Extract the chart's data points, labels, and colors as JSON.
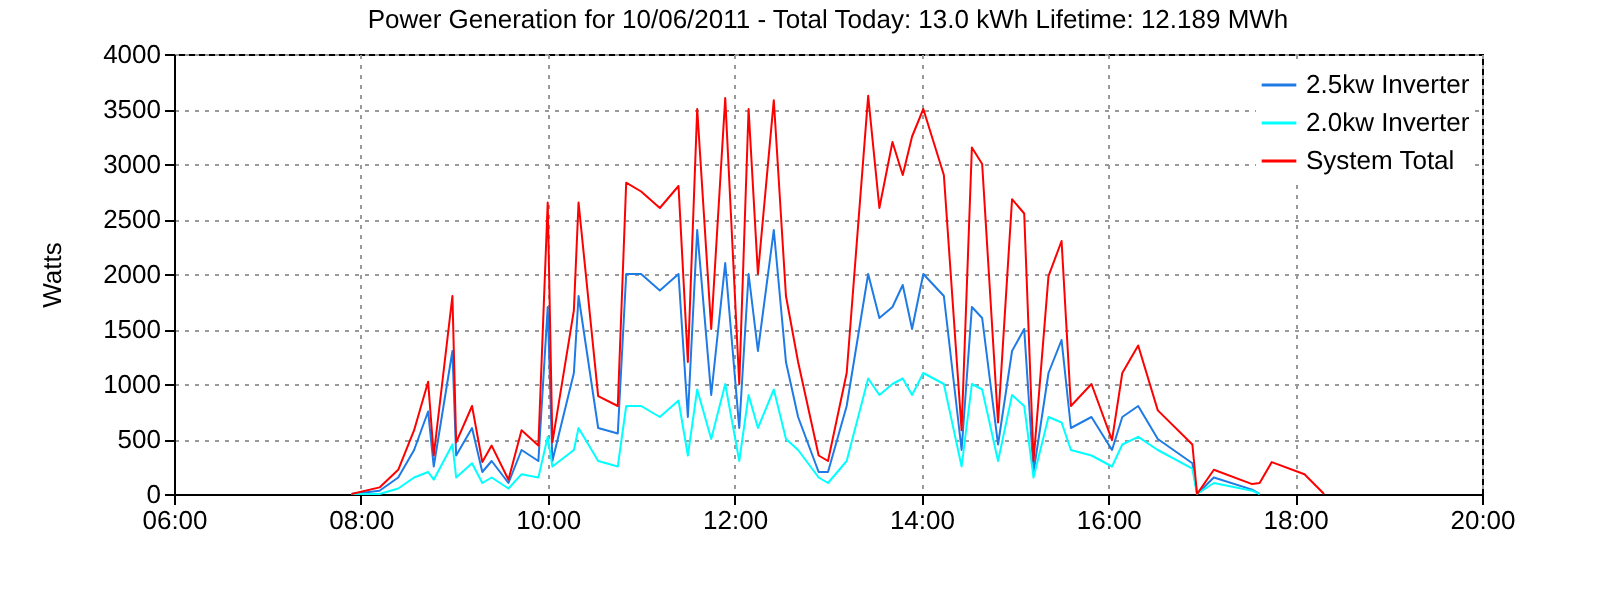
{
  "chart_data": {
    "type": "line",
    "title": "Power Generation for 10/06/2011 - Total Today: 13.0 kWh   Lifetime: 12.189 MWh",
    "ylabel": "Watts",
    "x": [
      7.9,
      8.2,
      8.4,
      8.57,
      8.72,
      8.78,
      8.98,
      9.02,
      9.19,
      9.3,
      9.4,
      9.58,
      9.72,
      9.9,
      10.0,
      10.05,
      10.28,
      10.33,
      10.54,
      10.75,
      10.84,
      11.0,
      11.2,
      11.4,
      11.5,
      11.6,
      11.75,
      11.9,
      12.05,
      12.15,
      12.25,
      12.42,
      12.55,
      12.68,
      12.9,
      13.0,
      13.2,
      13.43,
      13.55,
      13.69,
      13.8,
      13.9,
      14.02,
      14.24,
      14.43,
      14.54,
      14.65,
      14.82,
      14.97,
      15.1,
      15.2,
      15.36,
      15.5,
      15.6,
      15.82,
      16.04,
      16.15,
      16.32,
      16.53,
      16.9,
      16.95,
      17.13,
      17.54,
      17.62,
      17.75,
      18.1,
      18.31
    ],
    "series": [
      {
        "name": "2.5kw Inverter",
        "color": "#1e7be6",
        "values": [
          0,
          30,
          150,
          400,
          750,
          250,
          1300,
          350,
          600,
          200,
          300,
          100,
          400,
          300,
          1700,
          300,
          1100,
          1800,
          600,
          550,
          2000,
          2000,
          1850,
          2000,
          700,
          2400,
          900,
          2100,
          600,
          2000,
          1300,
          2400,
          1200,
          700,
          200,
          200,
          800,
          2000,
          1600,
          1700,
          1900,
          1500,
          2000,
          1800,
          400,
          1700,
          1600,
          450,
          1300,
          1500,
          200,
          1100,
          1400,
          600,
          700,
          400,
          700,
          800,
          500,
          280,
          0,
          150,
          40,
          0,
          null,
          null,
          null
        ]
      },
      {
        "name": "2.0kw Inverter",
        "color": "#00ffff",
        "values": [
          0,
          0,
          50,
          150,
          200,
          130,
          450,
          150,
          280,
          100,
          150,
          50,
          180,
          150,
          520,
          250,
          400,
          600,
          300,
          250,
          800,
          800,
          700,
          850,
          350,
          950,
          500,
          1000,
          300,
          900,
          600,
          950,
          500,
          400,
          150,
          100,
          300,
          1050,
          900,
          1000,
          1050,
          900,
          1100,
          1000,
          250,
          1000,
          950,
          300,
          900,
          800,
          150,
          700,
          650,
          400,
          350,
          250,
          450,
          520,
          400,
          230,
          0,
          100,
          30,
          0,
          null,
          null,
          null
        ]
      },
      {
        "name": "System Total",
        "color": "#ff0000",
        "values": [
          0,
          60,
          220,
          580,
          1020,
          350,
          1800,
          470,
          800,
          290,
          440,
          130,
          580,
          440,
          2650,
          470,
          1670,
          2650,
          890,
          800,
          2830,
          2750,
          2600,
          2800,
          1200,
          3500,
          1500,
          3600,
          1000,
          3500,
          2000,
          3580,
          1800,
          1200,
          350,
          300,
          1100,
          3620,
          2600,
          3200,
          2900,
          3250,
          3500,
          2900,
          580,
          3150,
          3000,
          650,
          2680,
          2550,
          300,
          1980,
          2300,
          800,
          1000,
          490,
          1100,
          1350,
          760,
          450,
          0,
          220,
          90,
          100,
          290,
          180,
          0
        ]
      }
    ],
    "xlim": [
      6,
      20
    ],
    "xticks": [
      {
        "value": 6,
        "label": "06:00"
      },
      {
        "value": 8,
        "label": "08:00"
      },
      {
        "value": 10,
        "label": "10:00"
      },
      {
        "value": 12,
        "label": "12:00"
      },
      {
        "value": 14,
        "label": "14:00"
      },
      {
        "value": 16,
        "label": "16:00"
      },
      {
        "value": 18,
        "label": "18:00"
      },
      {
        "value": 20,
        "label": "20:00"
      }
    ],
    "ylim": [
      0,
      4000
    ],
    "yticks": [
      0,
      500,
      1000,
      1500,
      2000,
      2500,
      3000,
      3500,
      4000
    ],
    "grid": true,
    "legend": "top right"
  }
}
